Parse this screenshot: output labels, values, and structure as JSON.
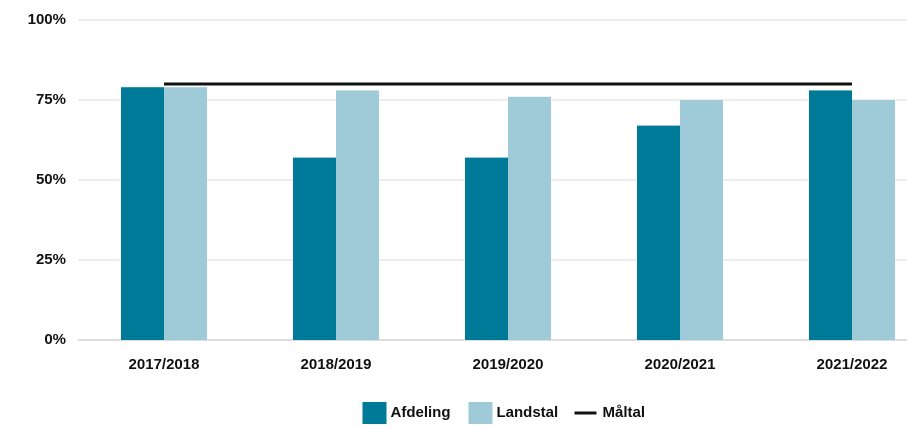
{
  "chart_data": {
    "type": "bar",
    "categories": [
      "2017/2018",
      "2018/2019",
      "2019/2020",
      "2020/2021",
      "2021/2022"
    ],
    "series": [
      {
        "name": "Afdeling",
        "color": "#007a99",
        "values": [
          79,
          57,
          57,
          67,
          78
        ]
      },
      {
        "name": "Landstal",
        "color": "#9ecbd7",
        "values": [
          79,
          78,
          76,
          75,
          75
        ]
      },
      {
        "name": "Måltal",
        "color": "#111111",
        "type": "line",
        "values": [
          80,
          80,
          80,
          80,
          80
        ]
      }
    ],
    "ylim": [
      0,
      100
    ],
    "yticks": [
      {
        "value": 0,
        "label": "0%"
      },
      {
        "value": 25,
        "label": "25%"
      },
      {
        "value": 50,
        "label": "50%"
      },
      {
        "value": 75,
        "label": "75%"
      },
      {
        "value": 100,
        "label": "100%"
      }
    ],
    "grid": true,
    "legend": "bottom"
  }
}
